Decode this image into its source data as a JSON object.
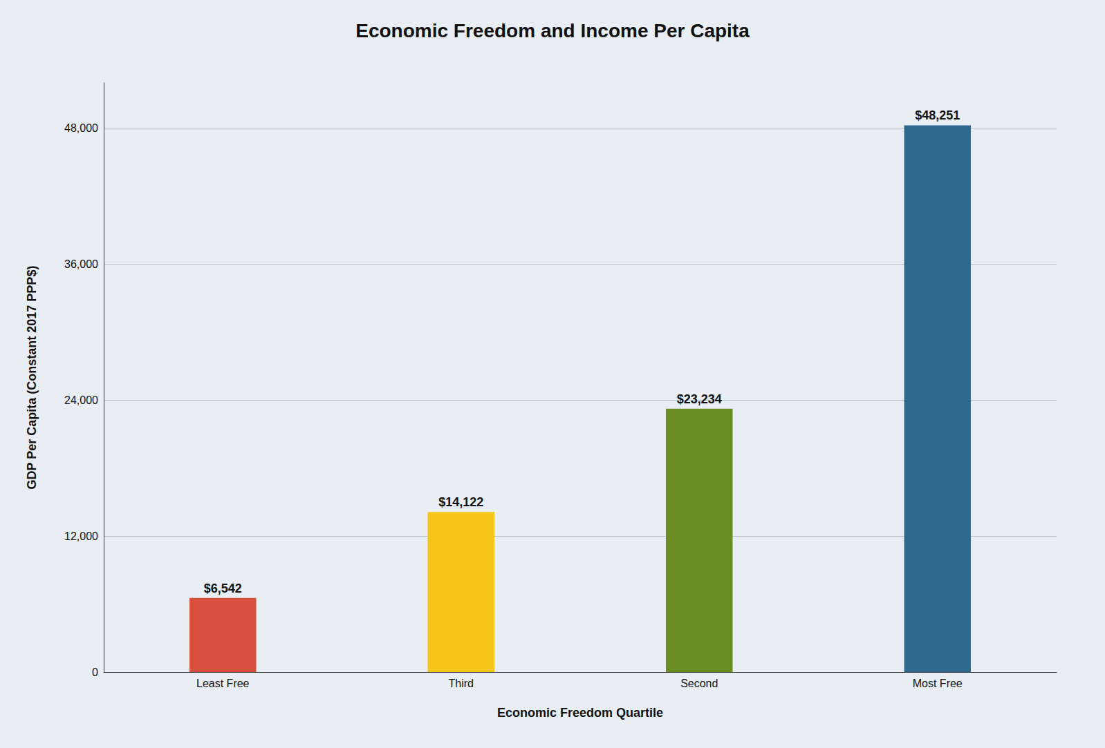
{
  "chart_data": {
    "type": "bar",
    "title": "Economic Freedom and Income Per Capita",
    "x_label": "Economic Freedom Quartile",
    "y_label": "GDP Per Capita (Constant 2017 PPP$)",
    "categories": [
      "Least Free",
      "Third",
      "Second",
      "Most Free"
    ],
    "values": [
      6542,
      14122,
      23234,
      48251
    ],
    "value_labels": [
      "$6,542",
      "$14,122",
      "$23,234",
      "$48,251"
    ],
    "data_labels": true,
    "colors": [
      "#D94F3D",
      "#F5C518",
      "#6B8E23",
      "#2E6A8E"
    ],
    "ylim": [
      0,
      52000
    ],
    "yticks": [
      0,
      {
        "value": 12000,
        "label": "12,000"
      },
      {
        "value": 24000,
        "label": "24,000"
      },
      {
        "value": 36000,
        "label": "36,000"
      },
      {
        "value": 48000,
        "label": "48,000"
      }
    ],
    "grid": true
  }
}
